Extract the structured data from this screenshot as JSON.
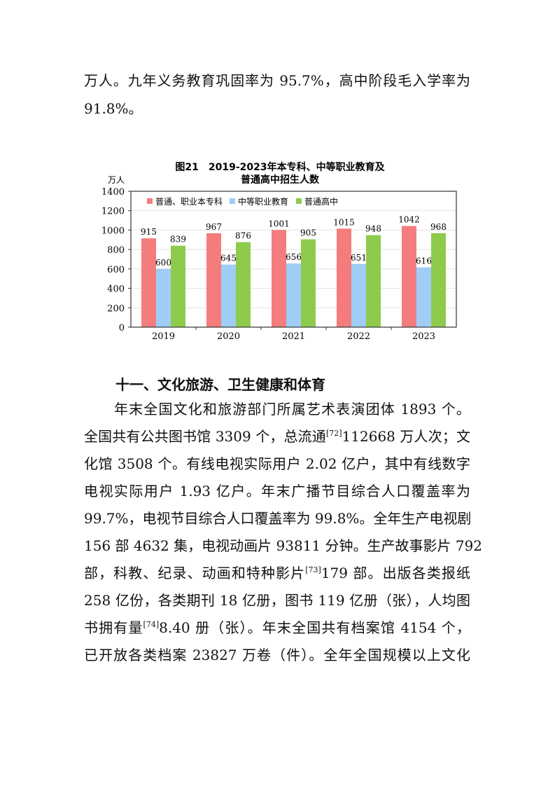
{
  "intro_lines": [
    [
      {
        "t": "万人。九年义务教育巩固率为 95.7%，高中阶段毛入学率为"
      }
    ],
    [
      {
        "t": "91.8%。"
      }
    ]
  ],
  "chart_data": {
    "type": "bar",
    "title": "图21　2019-2023年本专科、中等职业教育及",
    "title_line2": "普通高中招生人数",
    "ylabel": "万人",
    "xlabel": "",
    "ylim": [
      0,
      1400
    ],
    "yticks": [
      0,
      200,
      400,
      600,
      800,
      1000,
      1200,
      1400
    ],
    "grid": true,
    "legend_position": "top-left",
    "categories": [
      "2019",
      "2020",
      "2021",
      "2022",
      "2023"
    ],
    "series": [
      {
        "name": "普通、职业本专科",
        "color": "#f47c7c",
        "values": [
          915,
          967,
          1001,
          1015,
          1042
        ]
      },
      {
        "name": "中等职业教育",
        "color": "#9fcdf6",
        "values": [
          600,
          645,
          656,
          651,
          616
        ]
      },
      {
        "name": "普通高中",
        "color": "#8ecb4c",
        "values": [
          839,
          876,
          905,
          948,
          968
        ]
      }
    ]
  },
  "section_heading": "十一、文化旅游、卫生健康和体育",
  "body_lines": [
    [
      {
        "t": "年末全国文化和旅游部门所属艺术表演团体 1893 个。"
      }
    ],
    [
      {
        "t": "全国共有公共图书馆 3309 个，总流通"
      },
      {
        "sup": "[72]"
      },
      {
        "t": "112668 万人次；文"
      }
    ],
    [
      {
        "t": "化馆 3508 个。有线电视实际用户 2.02 亿户，其中有线数字"
      }
    ],
    [
      {
        "t": "电视实际用户 1.93 亿户。年末广播节目综合人口覆盖率为"
      }
    ],
    [
      {
        "t": "99.7%，电视节目综合人口覆盖率为 99.8%。全年生产电视剧"
      }
    ],
    [
      {
        "t": "156 部 4632 集，电视动画片 93811 分钟。生产故事影片 792"
      }
    ],
    [
      {
        "t": "部，科教、纪录、动画和特种影片"
      },
      {
        "sup": "[73]"
      },
      {
        "t": "179 部。出版各类报纸"
      }
    ],
    [
      {
        "t": "258 亿份，各类期刊 18 亿册，图书 119 亿册（张），人均图"
      }
    ],
    [
      {
        "t": "书拥有量"
      },
      {
        "sup": "[74]"
      },
      {
        "t": "8.40 册（张）。年末全国共有档案馆 4154 个，"
      }
    ],
    [
      {
        "t": "已开放各类档案 23827 万卷（件）。全年全国规模以上文化"
      }
    ]
  ]
}
